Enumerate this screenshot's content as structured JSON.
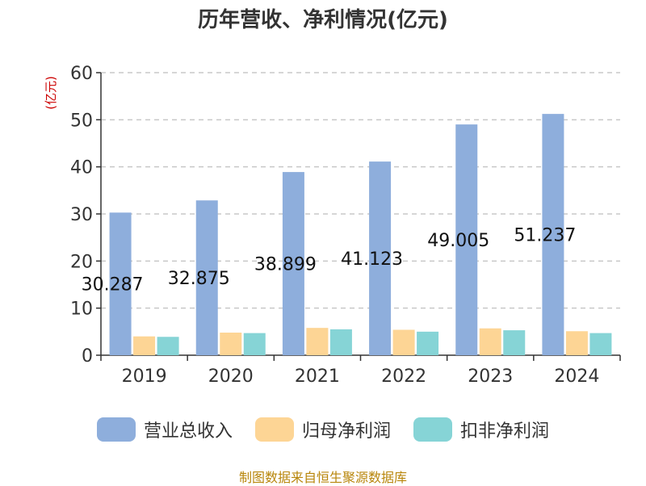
{
  "chart_data": {
    "type": "bar",
    "title": "历年营收、净利情况(亿元)",
    "ylabel": "(亿元)",
    "xlabel": "",
    "categories": [
      "2019",
      "2020",
      "2021",
      "2022",
      "2023",
      "2024"
    ],
    "ylim": [
      0,
      60
    ],
    "yticks": [
      0,
      10,
      20,
      30,
      40,
      50,
      60
    ],
    "grid": true,
    "legend_position": "bottom",
    "series": [
      {
        "name": "营业总收入",
        "color": "#8eaedc",
        "values": [
          30.287,
          32.875,
          38.899,
          41.123,
          49.005,
          51.237
        ],
        "labels": [
          "30.287",
          "32.875",
          "38.899",
          "41.123",
          "49.005",
          "51.237"
        ]
      },
      {
        "name": "归母净利润",
        "color": "#fdd595",
        "values": [
          4.0,
          4.8,
          5.8,
          5.4,
          5.7,
          5.1
        ]
      },
      {
        "name": "扣非净利润",
        "color": "#86d4d6",
        "values": [
          3.9,
          4.7,
          5.5,
          5.0,
          5.3,
          4.7
        ]
      }
    ],
    "source": "制图数据来自恒生聚源数据库"
  }
}
